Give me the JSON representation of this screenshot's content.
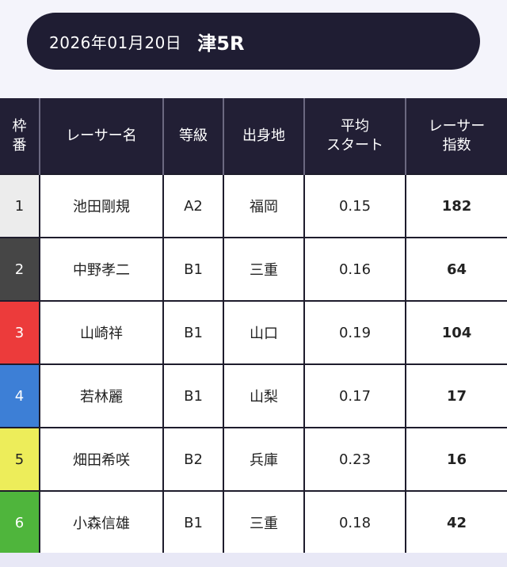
{
  "header": {
    "date": "2026年01月20日",
    "race": "津5R"
  },
  "table": {
    "headers": {
      "frame": [
        "枠",
        "番"
      ],
      "racer_name": "レーサー名",
      "grade": "等級",
      "hometown": "出身地",
      "avg_start": [
        "平均",
        "スタート"
      ],
      "racer_index": [
        "レーサー",
        "指数"
      ]
    },
    "rows": [
      {
        "frame": "1",
        "name": "池田剛規",
        "grade": "A2",
        "hometown": "福岡",
        "avg_start": "0.15",
        "index": "182",
        "frame_bg": "#ececec",
        "frame_fg": "#222222"
      },
      {
        "frame": "2",
        "name": "中野孝二",
        "grade": "B1",
        "hometown": "三重",
        "avg_start": "0.16",
        "index": "64",
        "frame_bg": "#464646",
        "frame_fg": "#ffffff"
      },
      {
        "frame": "3",
        "name": "山崎祥",
        "grade": "B1",
        "hometown": "山口",
        "avg_start": "0.19",
        "index": "104",
        "frame_bg": "#ec3b3b",
        "frame_fg": "#ffffff"
      },
      {
        "frame": "4",
        "name": "若林麗",
        "grade": "B1",
        "hometown": "山梨",
        "avg_start": "0.17",
        "index": "17",
        "frame_bg": "#3d7fd6",
        "frame_fg": "#ffffff"
      },
      {
        "frame": "5",
        "name": "畑田希咲",
        "grade": "B2",
        "hometown": "兵庫",
        "avg_start": "0.23",
        "index": "16",
        "frame_bg": "#eded5a",
        "frame_fg": "#222222"
      },
      {
        "frame": "6",
        "name": "小森信雄",
        "grade": "B1",
        "hometown": "三重",
        "avg_start": "0.18",
        "index": "42",
        "frame_bg": "#4fb53c",
        "frame_fg": "#ffffff"
      }
    ]
  }
}
